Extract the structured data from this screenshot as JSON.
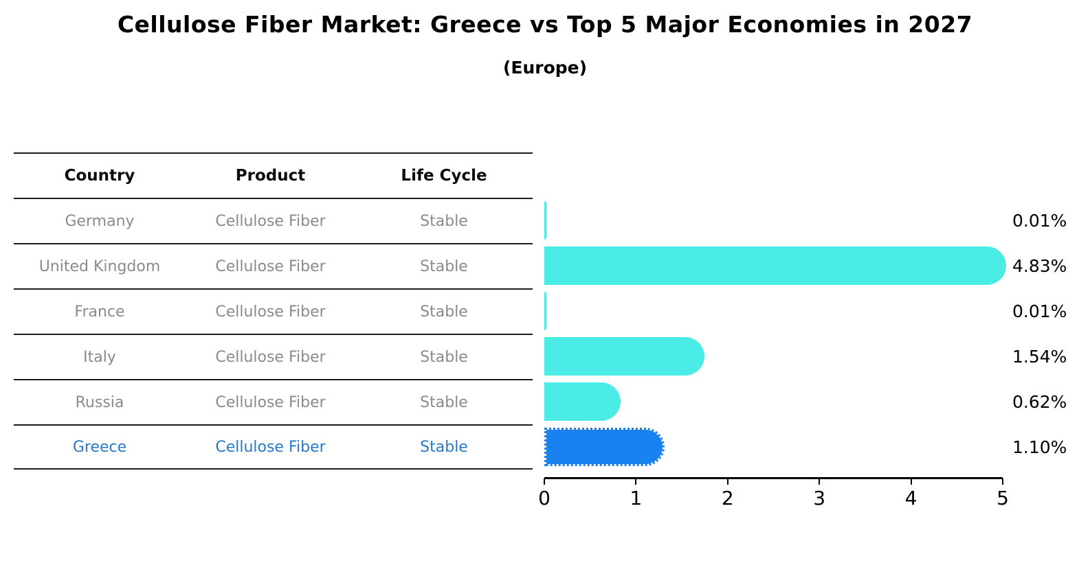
{
  "title": "Cellulose Fiber Market: Greece vs Top 5 Major Economies in 2027",
  "subtitle": "(Europe)",
  "table": {
    "headers": [
      "Country",
      "Product",
      "Life Cycle"
    ],
    "rows": [
      {
        "country": "Germany",
        "product": "Cellulose Fiber",
        "life_cycle": "Stable",
        "highlighted": false
      },
      {
        "country": "United Kingdom",
        "product": "Cellulose Fiber",
        "life_cycle": "Stable",
        "highlighted": false
      },
      {
        "country": "France",
        "product": "Cellulose Fiber",
        "life_cycle": "Stable",
        "highlighted": false
      },
      {
        "country": "Italy",
        "product": "Cellulose Fiber",
        "life_cycle": "Stable",
        "highlighted": false
      },
      {
        "country": "Russia",
        "product": "Cellulose Fiber",
        "life_cycle": "Stable",
        "highlighted": false
      },
      {
        "country": "Greece",
        "product": "Cellulose Fiber",
        "life_cycle": "Stable",
        "highlighted": true
      }
    ]
  },
  "chart_data": {
    "type": "bar",
    "orientation": "horizontal",
    "title": "Cellulose Fiber Market: Greece vs Top 5 Major Economies in 2027 (Europe)",
    "categories": [
      "Germany",
      "United Kingdom",
      "France",
      "Italy",
      "Russia",
      "Greece"
    ],
    "values": [
      0.01,
      4.83,
      0.01,
      1.54,
      0.62,
      1.1
    ],
    "value_labels": [
      "0.01%",
      "4.83%",
      "0.01%",
      "1.54%",
      "0.62%",
      "1.10%"
    ],
    "xlim": [
      0,
      5
    ],
    "x_ticks": [
      0,
      1,
      2,
      3,
      4,
      5
    ],
    "x_tick_labels": [
      "0",
      "1",
      "2",
      "3",
      "4",
      "5"
    ],
    "highlight_index": 5,
    "legend": "none",
    "grid": false,
    "colors": {
      "bar": "#4aece5",
      "highlight_bar": "#1a82f0",
      "highlight_text": "#2879cc",
      "table_text": "#8a8a8a",
      "header_text": "#0d0d0d",
      "axis": "#000000"
    }
  }
}
